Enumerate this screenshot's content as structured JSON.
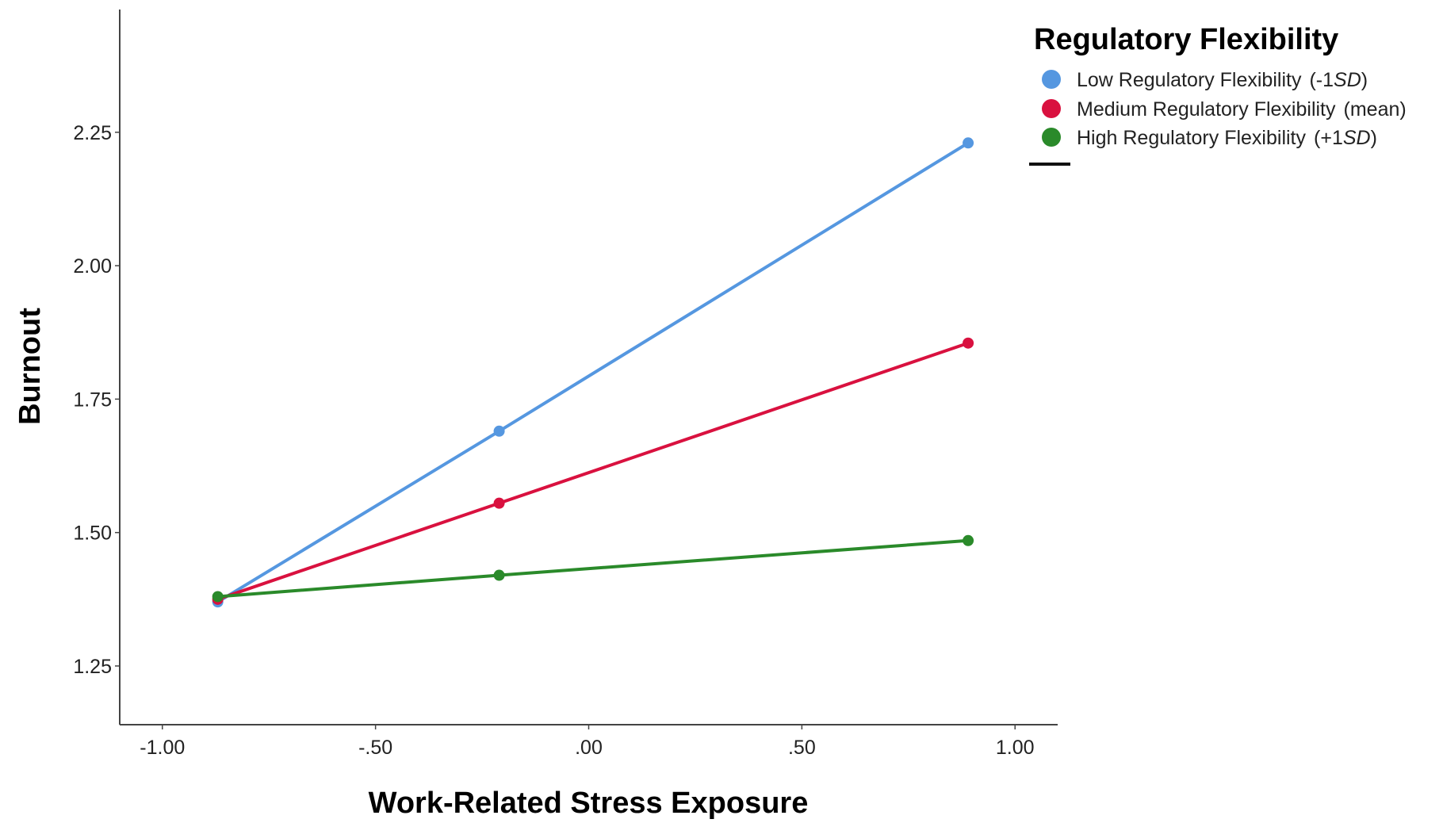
{
  "chart_data": {
    "type": "line",
    "xlabel": "Work-Related Stress Exposure",
    "ylabel": "Burnout",
    "xlim": [
      -1.1,
      1.1
    ],
    "ylim": [
      1.14,
      2.48
    ],
    "x_ticks": [
      -1.0,
      -0.5,
      0.0,
      0.5,
      1.0
    ],
    "x_tick_labels": [
      "-1.00",
      "-.50",
      ".00",
      ".50",
      "1.00"
    ],
    "y_ticks": [
      1.25,
      1.5,
      1.75,
      2.0,
      2.25
    ],
    "y_tick_labels": [
      "1.25",
      "1.50",
      "1.75",
      "2.00",
      "2.25"
    ],
    "grid": false,
    "legend": {
      "title": "Regulatory Flexibility",
      "placement": "top-right outside plot",
      "entries": [
        {
          "text": "Low Regulatory Flexibility",
          "suffix_pre": "(-1",
          "suffix_italic": "SD",
          "suffix_post": ")"
        },
        {
          "text": "Medium Regulatory Flexibility",
          "suffix_pre": "(mean)",
          "suffix_italic": "",
          "suffix_post": ""
        },
        {
          "text": "High Regulatory Flexibility",
          "suffix_pre": "(+1",
          "suffix_italic": "SD",
          "suffix_post": ")"
        }
      ]
    },
    "series": [
      {
        "name": "Low Regulatory Flexibility",
        "color": "#5597e0",
        "x": [
          -0.87,
          -0.21,
          0.89
        ],
        "y": [
          1.37,
          1.69,
          2.23
        ]
      },
      {
        "name": "Medium Regulatory Flexibility",
        "color": "#d9113f",
        "x": [
          -0.87,
          -0.21,
          0.89
        ],
        "y": [
          1.375,
          1.555,
          1.855
        ]
      },
      {
        "name": "High Regulatory Flexibility",
        "color": "#2a8a2a",
        "x": [
          -0.87,
          -0.21,
          0.89
        ],
        "y": [
          1.38,
          1.42,
          1.485
        ]
      }
    ]
  }
}
